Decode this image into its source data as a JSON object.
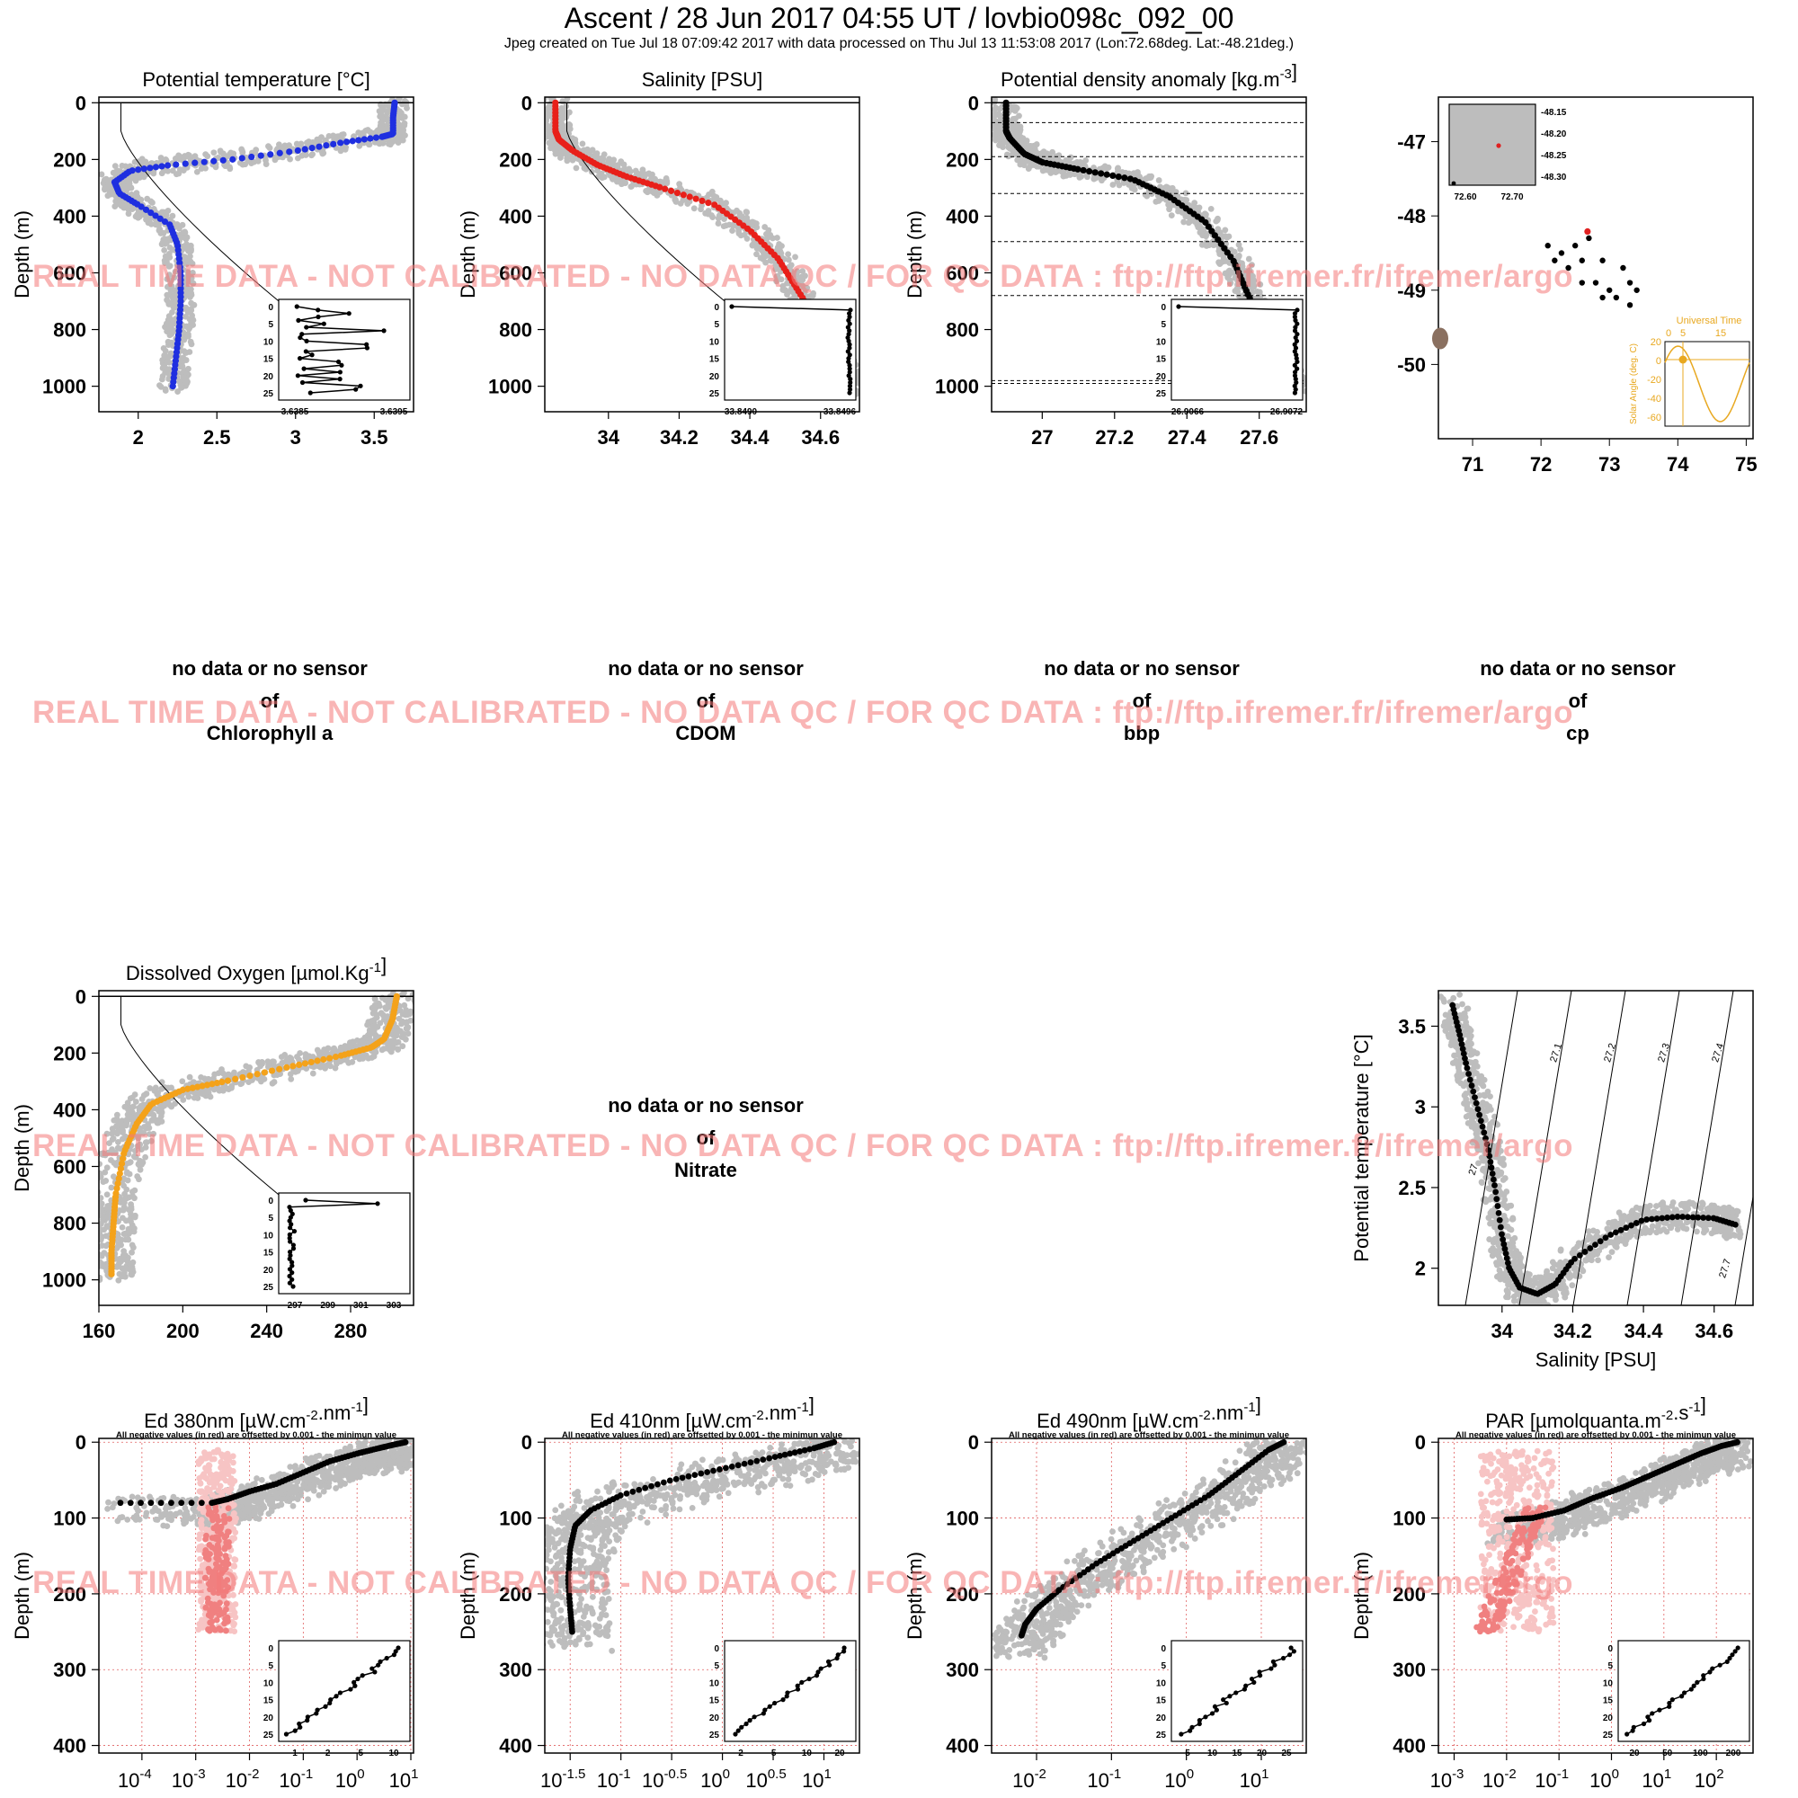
{
  "header": {
    "title": "Ascent / 28 Jun 2017 04:55 UT /  lovbio098c_092_00",
    "subtitle": "Jpeg created on Tue Jul 18 07:09:42 2017 with data processed on Thu Jul 13 11:53:08 2017 (Lon:72.68deg. Lat:-48.21deg.)"
  },
  "watermark": "REAL TIME DATA - NOT CALIBRATED - NO DATA QC   /  FOR QC DATA : ftp://ftp.ifremer.fr/ifremer/argo",
  "no_data": {
    "line1": "no data or no sensor",
    "line2": "of",
    "chlorophyll": "Chlorophyll a",
    "cdom": "CDOM",
    "bbp": "bbp",
    "cp": "cp",
    "nitrate": "Nitrate"
  },
  "colors": {
    "temperature": "#1f2fe0",
    "salinity": "#e8201a",
    "density": "#000000",
    "oxygen": "#f4a21a",
    "climatology": "#bdbdbd",
    "negative": "#f08080",
    "negative_light": "#f7c4c4",
    "watermark": "#f47878",
    "solar": "#e8a820"
  },
  "chart_data": [
    {
      "type": "scatter",
      "id": "temp",
      "title": "Potential temperature [°C]",
      "ylabel": "Depth (m)",
      "xlim": [
        1.75,
        3.75
      ],
      "ylim": [
        1090,
        -20
      ],
      "xticks": [
        2.0,
        2.5,
        3.0,
        3.5
      ],
      "yticks": [
        0,
        200,
        400,
        600,
        800,
        1000
      ],
      "series": [
        {
          "points": [
            [
              3.63,
              0
            ],
            [
              3.62,
              50
            ],
            [
              3.62,
              110
            ],
            [
              3.55,
              120
            ],
            [
              3.3,
              140
            ],
            [
              3.0,
              170
            ],
            [
              2.6,
              200
            ],
            [
              2.2,
              220
            ],
            [
              1.95,
              240
            ],
            [
              1.85,
              280
            ],
            [
              1.88,
              320
            ],
            [
              2.0,
              360
            ],
            [
              2.2,
              430
            ],
            [
              2.25,
              500
            ],
            [
              2.27,
              600
            ],
            [
              2.27,
              700
            ],
            [
              2.26,
              800
            ],
            [
              2.24,
              900
            ],
            [
              2.22,
              1000
            ]
          ]
        }
      ],
      "inset": {
        "xticks": [
          "3.6385",
          "3.6395"
        ],
        "yticks": [
          "0",
          "5",
          "10",
          "15",
          "20",
          "25"
        ]
      }
    },
    {
      "type": "scatter",
      "id": "sal",
      "title": "Salinity [PSU]",
      "ylabel": "Depth (m)",
      "xlim": [
        33.82,
        34.71
      ],
      "ylim": [
        1090,
        -20
      ],
      "xticks": [
        34.0,
        34.2,
        34.4,
        34.6
      ],
      "yticks": [
        0,
        200,
        400,
        600,
        800,
        1000
      ],
      "series": [
        {
          "points": [
            [
              33.85,
              0
            ],
            [
              33.85,
              100
            ],
            [
              33.86,
              130
            ],
            [
              33.9,
              170
            ],
            [
              33.97,
              220
            ],
            [
              34.05,
              260
            ],
            [
              34.15,
              300
            ],
            [
              34.3,
              360
            ],
            [
              34.4,
              450
            ],
            [
              34.48,
              550
            ],
            [
              34.53,
              650
            ],
            [
              34.58,
              750
            ],
            [
              34.63,
              850
            ],
            [
              34.67,
              950
            ],
            [
              34.69,
              1000
            ]
          ]
        }
      ],
      "inset": {
        "xticks": [
          "33.8490",
          "33.8496"
        ],
        "yticks": [
          "0",
          "5",
          "10",
          "15",
          "20",
          "25"
        ]
      }
    },
    {
      "type": "scatter",
      "id": "dens",
      "title": "Potential density anomaly [kg.m-3]",
      "ylabel": "Depth (m)",
      "xlim": [
        26.86,
        27.73
      ],
      "ylim": [
        1090,
        -20
      ],
      "xticks": [
        27.0,
        27.2,
        27.4,
        27.6
      ],
      "yticks": [
        0,
        200,
        400,
        600,
        800,
        1000
      ],
      "hlines": [
        70,
        190,
        320,
        490,
        680,
        980,
        990
      ],
      "series": [
        {
          "points": [
            [
              26.9,
              0
            ],
            [
              26.9,
              100
            ],
            [
              26.91,
              125
            ],
            [
              26.95,
              180
            ],
            [
              27.0,
              210
            ],
            [
              27.1,
              235
            ],
            [
              27.25,
              270
            ],
            [
              27.35,
              330
            ],
            [
              27.45,
              420
            ],
            [
              27.53,
              560
            ],
            [
              27.57,
              680
            ],
            [
              27.62,
              800
            ],
            [
              27.66,
              900
            ],
            [
              27.7,
              1000
            ]
          ]
        }
      ],
      "inset": {
        "xticks": [
          "26.9066",
          "26.9072"
        ],
        "yticks": [
          "0",
          "5",
          "10",
          "15",
          "20",
          "25"
        ]
      }
    },
    {
      "type": "scatter",
      "id": "map",
      "xlim": [
        70.5,
        75.1
      ],
      "ylim": [
        -51.0,
        -46.4
      ],
      "xticks": [
        71,
        72,
        73,
        74,
        75
      ],
      "yticks": [
        -47,
        -48,
        -49,
        -50
      ],
      "series": [
        {
          "points": [
            [
              72.1,
              -48.4
            ],
            [
              72.3,
              -48.5
            ],
            [
              72.5,
              -48.4
            ],
            [
              72.6,
              -48.6
            ],
            [
              72.4,
              -48.7
            ],
            [
              72.2,
              -48.6
            ],
            [
              72.9,
              -48.6
            ],
            [
              73.2,
              -48.7
            ],
            [
              73.3,
              -48.9
            ],
            [
              73.0,
              -49.0
            ],
            [
              72.8,
              -48.9
            ],
            [
              73.1,
              -49.1
            ],
            [
              73.4,
              -49.0
            ],
            [
              73.3,
              -49.2
            ],
            [
              72.9,
              -49.1
            ],
            [
              72.6,
              -48.9
            ],
            [
              72.7,
              -48.3
            ]
          ]
        }
      ],
      "current": [
        72.68,
        -48.21
      ],
      "inset": {
        "xticks": [
          "72.60",
          "72.70"
        ],
        "yticks": [
          "-48.15",
          "-48.20",
          "-48.25",
          "-48.30"
        ]
      },
      "solar": {
        "title": "Universal Time",
        "ylabel": "Solar Angle (deg. C)",
        "xticks": [
          "0",
          "5",
          "15"
        ],
        "yticks": [
          "20",
          "0",
          "-20",
          "-40",
          "-60"
        ]
      }
    },
    {
      "type": "scatter",
      "id": "oxy",
      "title": "Dissolved Oxygen [µmol.Kg-1]",
      "ylabel": "Depth (m)",
      "xlim": [
        160,
        310
      ],
      "ylim": [
        1090,
        -20
      ],
      "xticks": [
        160,
        200,
        240,
        280
      ],
      "yticks": [
        0,
        200,
        400,
        600,
        800,
        1000
      ],
      "series": [
        {
          "points": [
            [
              302,
              0
            ],
            [
              300,
              80
            ],
            [
              296,
              150
            ],
            [
              290,
              180
            ],
            [
              275,
              210
            ],
            [
              250,
              250
            ],
            [
              220,
              300
            ],
            [
              200,
              330
            ],
            [
              185,
              380
            ],
            [
              178,
              450
            ],
            [
              172,
              550
            ],
            [
              168,
              700
            ],
            [
              167,
              800
            ],
            [
              166,
              900
            ],
            [
              166,
              980
            ]
          ]
        }
      ],
      "inset": {
        "xticks": [
          "297",
          "299",
          "301",
          "303"
        ],
        "yticks": [
          "0",
          "5",
          "10",
          "15",
          "20",
          "25"
        ]
      }
    },
    {
      "type": "scatter",
      "id": "ts",
      "xlabel": "Salinity [PSU]",
      "ylabel": "Potential temperature [°C]",
      "xlim": [
        33.82,
        34.71
      ],
      "ylim": [
        1.77,
        3.72
      ],
      "xticks": [
        34.0,
        34.2,
        34.4,
        34.6
      ],
      "yticks": [
        2.0,
        2.5,
        3.0,
        3.5
      ],
      "isopycnals": [
        "27",
        "27.1",
        "27.2",
        "27.3",
        "27.4",
        "27.5",
        "27.6",
        "27.7"
      ],
      "series": [
        {
          "points": [
            [
              33.86,
              3.63
            ],
            [
              33.88,
              3.45
            ],
            [
              33.9,
              3.25
            ],
            [
              33.93,
              3.0
            ],
            [
              33.96,
              2.75
            ],
            [
              33.98,
              2.5
            ],
            [
              34.0,
              2.2
            ],
            [
              34.02,
              2.0
            ],
            [
              34.05,
              1.88
            ],
            [
              34.1,
              1.84
            ],
            [
              34.15,
              1.9
            ],
            [
              34.2,
              2.05
            ],
            [
              34.3,
              2.2
            ],
            [
              34.4,
              2.3
            ],
            [
              34.5,
              2.32
            ],
            [
              34.6,
              2.31
            ],
            [
              34.66,
              2.27
            ]
          ]
        }
      ]
    },
    {
      "type": "scatter",
      "id": "ed380",
      "title": "Ed 380nm [µW.cm-2.nm-1]",
      "note": "All negative values (in red) are offsetted by 0.001 - the minimun value",
      "ylabel": "Depth (m)",
      "xscale": "log",
      "xlim": [
        -4.8,
        1.05
      ],
      "ylim": [
        410,
        -5
      ],
      "xticks": [
        "10^-4",
        "10^-3",
        "10^-2",
        "10^-1",
        "10^0",
        "10^1"
      ],
      "xtick_values": [
        -4,
        -3,
        -2,
        -1,
        0,
        1
      ],
      "yticks": [
        0,
        100,
        200,
        300,
        400
      ],
      "series": [
        {
          "points": [
            [
              0.9,
              0
            ],
            [
              0.7,
              3
            ],
            [
              0.4,
              8
            ],
            [
              0.0,
              15
            ],
            [
              -0.5,
              25
            ],
            [
              -1.0,
              40
            ],
            [
              -1.5,
              55
            ],
            [
              -2.0,
              65
            ],
            [
              -2.4,
              75
            ],
            [
              -2.7,
              80
            ],
            [
              -4.4,
              80
            ]
          ]
        }
      ],
      "inset": {
        "xticks": [
          "1",
          "2",
          "5",
          "10"
        ],
        "yticks": [
          "0",
          "5",
          "10",
          "15",
          "20",
          "25"
        ]
      }
    },
    {
      "type": "scatter",
      "id": "ed410",
      "title": "Ed 410nm [µW.cm-2.nm-1]",
      "note": "All negative values (in red) are offsetted by 0.001 - the minimun value",
      "ylabel": "Depth (m)",
      "xscale": "log",
      "xlim": [
        -1.75,
        1.35
      ],
      "ylim": [
        410,
        -5
      ],
      "xticks": [
        "10^-1.5",
        "10^-1",
        "10^-0.5",
        "10^0",
        "10^0.5",
        "10^1"
      ],
      "xtick_values": [
        -1.5,
        -1,
        -0.5,
        0,
        0.5,
        1
      ],
      "yticks": [
        0,
        100,
        200,
        300,
        400
      ],
      "series": [
        {
          "points": [
            [
              1.1,
              0
            ],
            [
              0.9,
              8
            ],
            [
              0.5,
              20
            ],
            [
              0.0,
              35
            ],
            [
              -0.5,
              50
            ],
            [
              -1.0,
              70
            ],
            [
              -1.3,
              90
            ],
            [
              -1.45,
              110
            ],
            [
              -1.5,
              140
            ],
            [
              -1.52,
              180
            ],
            [
              -1.5,
              220
            ],
            [
              -1.48,
              250
            ]
          ]
        }
      ],
      "inset": {
        "xticks": [
          "2",
          "5",
          "10",
          "20"
        ],
        "yticks": [
          "0",
          "5",
          "10",
          "15",
          "20",
          "25"
        ]
      }
    },
    {
      "type": "scatter",
      "id": "ed490",
      "title": "Ed 490nm [µW.cm-2.nm-1]",
      "note": "All negative values (in red) are offsetted by 0.001 - the minimun value",
      "ylabel": "Depth (m)",
      "xscale": "log",
      "xlim": [
        -2.6,
        1.6
      ],
      "ylim": [
        410,
        -5
      ],
      "xticks": [
        "10^-2",
        "10^-1",
        "10^0",
        "10^1"
      ],
      "xtick_values": [
        -2,
        -1,
        0,
        1
      ],
      "yticks": [
        0,
        100,
        200,
        300,
        400
      ],
      "series": [
        {
          "points": [
            [
              1.3,
              0
            ],
            [
              1.1,
              10
            ],
            [
              0.7,
              40
            ],
            [
              0.3,
              70
            ],
            [
              -0.2,
              100
            ],
            [
              -0.7,
              130
            ],
            [
              -1.2,
              160
            ],
            [
              -1.7,
              195
            ],
            [
              -2.0,
              220
            ],
            [
              -2.15,
              240
            ],
            [
              -2.2,
              255
            ]
          ]
        }
      ],
      "inset": {
        "xticks": [
          "5",
          "10",
          "15",
          "20",
          "25"
        ],
        "yticks": [
          "0",
          "5",
          "10",
          "15",
          "20",
          "25"
        ]
      }
    },
    {
      "type": "scatter",
      "id": "par",
      "title": "PAR [µmolquanta.m-2.s-1]",
      "note": "All negative values (in red) are offsetted by 0.001 - the minimun value",
      "ylabel": "Depth (m)",
      "xscale": "log",
      "xlim": [
        -3.3,
        2.7
      ],
      "ylim": [
        410,
        -5
      ],
      "xticks": [
        "10^-3",
        "10^-2",
        "10^-1",
        "10^0",
        "10^1",
        "10^2"
      ],
      "xtick_values": [
        -3,
        -2,
        -1,
        0,
        1,
        2
      ],
      "yticks": [
        0,
        100,
        200,
        300,
        400
      ],
      "series": [
        {
          "points": [
            [
              2.4,
              0
            ],
            [
              2.1,
              5
            ],
            [
              1.7,
              15
            ],
            [
              1.2,
              30
            ],
            [
              0.7,
              45
            ],
            [
              0.2,
              60
            ],
            [
              -0.4,
              75
            ],
            [
              -0.9,
              90
            ],
            [
              -1.5,
              100
            ],
            [
              -2.0,
              102
            ]
          ]
        }
      ],
      "inset": {
        "xticks": [
          "20",
          "50",
          "100",
          "200"
        ],
        "yticks": [
          "0",
          "5",
          "10",
          "15",
          "20",
          "25"
        ]
      }
    }
  ]
}
